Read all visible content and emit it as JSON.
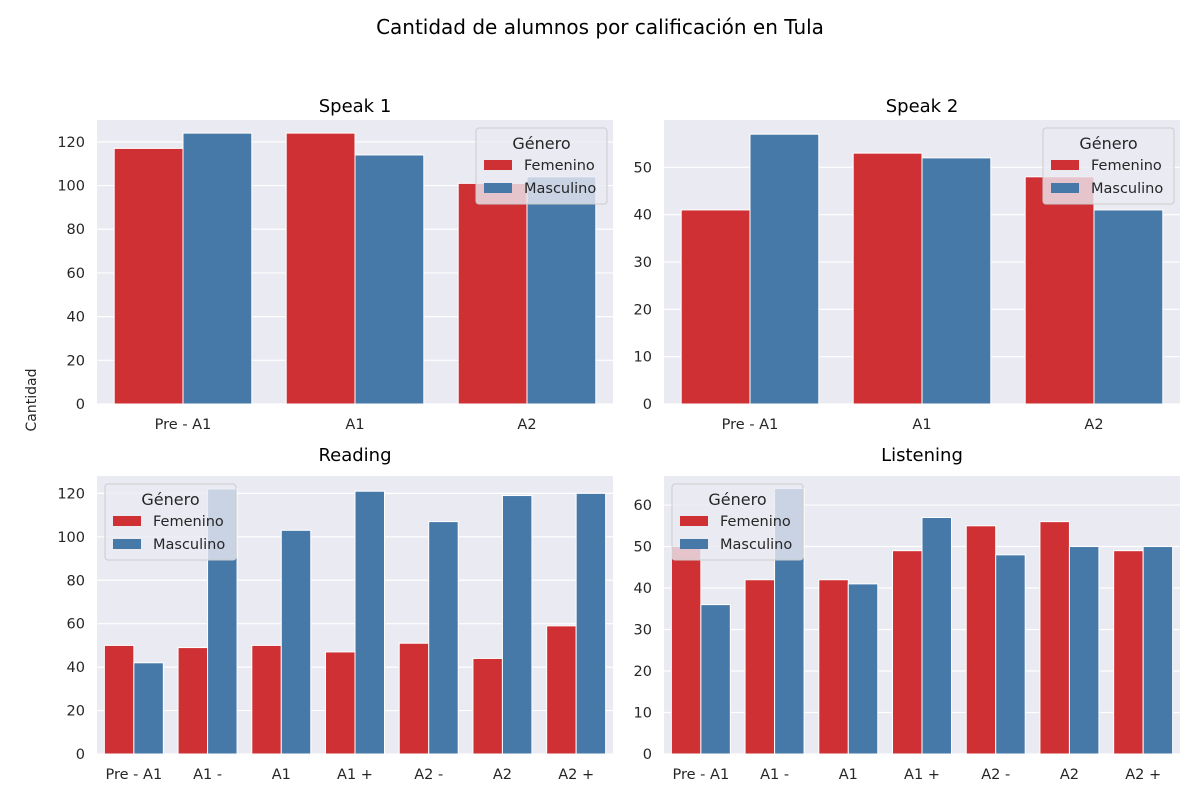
{
  "figure": {
    "title": "Cantidad de alumnos por calificación en Tula",
    "ylabel": "Cantidad"
  },
  "colors": {
    "Femenino": "#cf3034",
    "Masculino": "#4679a8",
    "background": "#eaeaf2",
    "grid": "#ffffff"
  },
  "chart_data": [
    {
      "type": "bar",
      "title": "Speak 1",
      "categories": [
        "Pre - A1",
        "A1",
        "A2"
      ],
      "series": [
        {
          "name": "Femenino",
          "values": [
            117,
            124,
            101
          ]
        },
        {
          "name": "Masculino",
          "values": [
            124,
            114,
            104
          ]
        }
      ],
      "ylim": [
        0,
        130
      ],
      "yticks": [
        0,
        20,
        40,
        60,
        80,
        100,
        120
      ],
      "legend": {
        "title": "Género",
        "placement": "top-right"
      },
      "grid": true
    },
    {
      "type": "bar",
      "title": "Speak 2",
      "categories": [
        "Pre - A1",
        "A1",
        "A2"
      ],
      "series": [
        {
          "name": "Femenino",
          "values": [
            41,
            53,
            48
          ]
        },
        {
          "name": "Masculino",
          "values": [
            57,
            52,
            41
          ]
        }
      ],
      "ylim": [
        0,
        60
      ],
      "yticks": [
        0,
        10,
        20,
        30,
        40,
        50
      ],
      "legend": {
        "title": "Género",
        "placement": "top-right"
      },
      "grid": true
    },
    {
      "type": "bar",
      "title": "Reading",
      "categories": [
        "Pre - A1",
        "A1 -",
        "A1",
        "A1 +",
        "A2 -",
        "A2",
        "A2 +"
      ],
      "series": [
        {
          "name": "Femenino",
          "values": [
            50,
            49,
            50,
            47,
            51,
            44,
            59
          ]
        },
        {
          "name": "Masculino",
          "values": [
            42,
            122,
            103,
            121,
            107,
            119,
            120
          ]
        }
      ],
      "ylim": [
        0,
        128
      ],
      "yticks": [
        0,
        20,
        40,
        60,
        80,
        100,
        120
      ],
      "legend": {
        "title": "Género",
        "placement": "top-left"
      },
      "grid": true
    },
    {
      "type": "bar",
      "title": "Listening",
      "categories": [
        "Pre - A1",
        "A1 -",
        "A1",
        "A1 +",
        "A2 -",
        "A2",
        "A2 +"
      ],
      "series": [
        {
          "name": "Femenino",
          "values": [
            50,
            42,
            42,
            49,
            55,
            56,
            49
          ]
        },
        {
          "name": "Masculino",
          "values": [
            36,
            64,
            41,
            57,
            48,
            50,
            50
          ]
        }
      ],
      "ylim": [
        0,
        67
      ],
      "yticks": [
        0,
        10,
        20,
        30,
        40,
        50,
        60
      ],
      "legend": {
        "title": "Género",
        "placement": "top-left"
      },
      "grid": true
    }
  ]
}
